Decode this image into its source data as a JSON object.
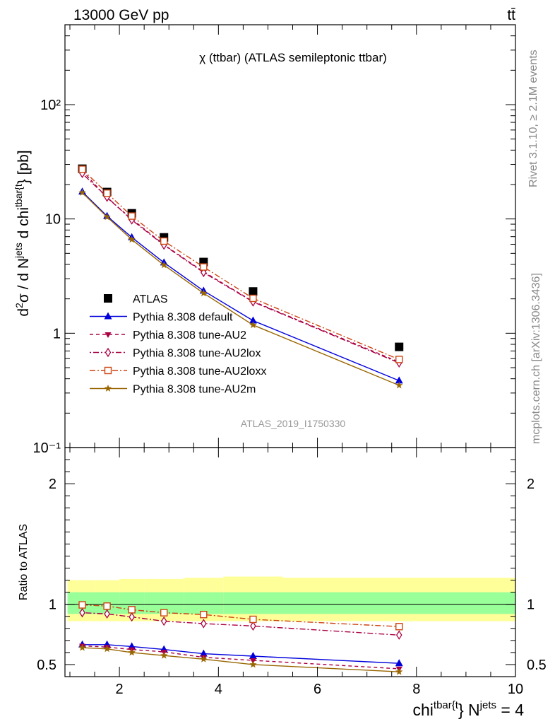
{
  "header": {
    "energy": "13000 GeV pp",
    "process": "tt̄"
  },
  "side_text": {
    "rivet": "Rivet 3.1.10, ≥ 2.1M events",
    "mcplots": "mcplots.cern.ch [arXiv:1306.3436]"
  },
  "chart_data": [
    {
      "type": "line",
      "title": "χ (ttbar) (ATLAS semileptonic ttbar)",
      "watermark": "ATLAS_2019_I1750330",
      "ylabel": "d²σ / d N^jets d chi^{tbar{t}} [pb]",
      "xlabel": "chi^{tbar{t}} N^jets = 4",
      "yscale": "log",
      "xlim": [
        0.9,
        10
      ],
      "ylim": [
        0.1,
        500
      ],
      "x_ticks": [
        "2",
        "4",
        "6",
        "8",
        "10"
      ],
      "y_ticks": [
        "10⁻¹",
        "1",
        "10",
        "10²"
      ],
      "x": [
        1.25,
        1.75,
        2.25,
        2.9,
        3.7,
        4.7,
        7.65
      ],
      "legend_position": "lower-left",
      "series": [
        {
          "name": "ATLAS",
          "color": "#000000",
          "marker": "square",
          "values": [
            27.5,
            17.2,
            11.2,
            6.9,
            4.2,
            2.32,
            0.76
          ]
        },
        {
          "name": "Pythia 8.308 default",
          "color": "#0000dd",
          "marker": "triangle-up",
          "dash": "",
          "values": [
            17.3,
            10.6,
            6.9,
            4.15,
            2.35,
            1.29,
            0.385
          ]
        },
        {
          "name": "Pythia 8.308 tune-AU2",
          "color": "#aa0044",
          "marker": "triangle-down",
          "dash": "5,4",
          "values": [
            26.5,
            15.3,
            10.0,
            5.95,
            3.45,
            1.9,
            0.56
          ]
        },
        {
          "name": "Pythia 8.308 tune-AU2lox",
          "color": "#aa0044",
          "marker": "diamond-open",
          "dash": "2,3,8,3",
          "values": [
            25.0,
            15.5,
            9.8,
            5.9,
            3.4,
            1.88,
            0.55
          ]
        },
        {
          "name": "Pythia 8.308 tune-AU2loxx",
          "color": "#cc4411",
          "marker": "square-open",
          "dash": "8,3,2,3",
          "values": [
            27.2,
            16.8,
            10.6,
            6.4,
            3.8,
            2.02,
            0.59
          ]
        },
        {
          "name": "Pythia 8.308 tune-AU2m",
          "color": "#996600",
          "marker": "star",
          "dash": "",
          "values": [
            17.0,
            10.4,
            6.6,
            3.95,
            2.24,
            1.18,
            0.35
          ]
        }
      ]
    },
    {
      "type": "line",
      "ylabel": "Ratio to ATLAS",
      "ylim": [
        0.4,
        2.3
      ],
      "y_ticks": [
        "0.5",
        "1",
        "2"
      ],
      "x": [
        1.25,
        1.75,
        2.25,
        2.9,
        3.7,
        4.7,
        7.65
      ],
      "bands": {
        "bins": [
          0.95,
          1.5,
          2.0,
          2.5,
          3.3,
          4.1,
          5.3,
          10.0
        ],
        "yellow_lo": [
          0.86,
          0.86,
          0.86,
          0.86,
          0.86,
          0.86,
          0.86
        ],
        "yellow_hi": [
          1.2,
          1.2,
          1.21,
          1.21,
          1.22,
          1.23,
          1.22
        ],
        "green_lo": [
          0.92,
          0.92,
          0.92,
          0.92,
          0.92,
          0.92,
          0.92
        ],
        "green_hi": [
          1.1,
          1.1,
          1.1,
          1.1,
          1.1,
          1.1,
          1.1
        ]
      },
      "series": [
        {
          "name": "Pythia 8.308 default",
          "values": [
            0.665,
            0.665,
            0.65,
            0.625,
            0.59,
            0.57,
            0.51
          ]
        },
        {
          "name": "Pythia 8.308 tune-AU2",
          "values": [
            0.655,
            0.645,
            0.625,
            0.605,
            0.56,
            0.535,
            0.465
          ]
        },
        {
          "name": "Pythia 8.308 tune-AU2lox",
          "values": [
            0.93,
            0.92,
            0.895,
            0.86,
            0.84,
            0.82,
            0.745
          ]
        },
        {
          "name": "Pythia 8.308 tune-AU2loxx",
          "values": [
            0.995,
            0.985,
            0.955,
            0.93,
            0.915,
            0.875,
            0.815
          ]
        },
        {
          "name": "Pythia 8.308 tune-AU2m",
          "values": [
            0.64,
            0.63,
            0.6,
            0.575,
            0.545,
            0.5,
            0.44
          ]
        }
      ]
    }
  ]
}
